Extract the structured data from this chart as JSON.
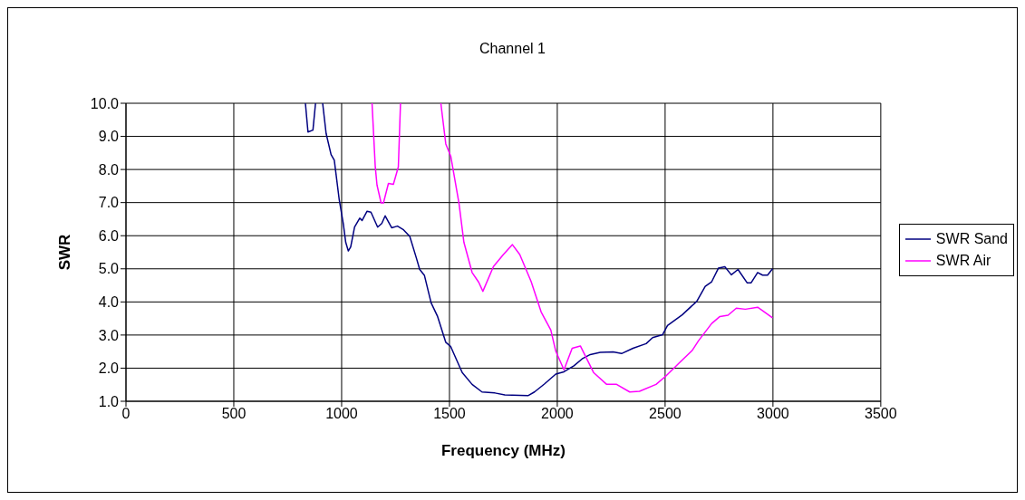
{
  "chart_data": {
    "type": "line",
    "title": "Channel 1",
    "xlabel": "Frequency (MHz)",
    "ylabel": "SWR",
    "xlim": [
      0,
      3500
    ],
    "xticks": [
      0,
      500,
      1000,
      1500,
      2000,
      2500,
      3000,
      3500
    ],
    "ylim": [
      1,
      10
    ],
    "yticks": [
      {
        "value": 1,
        "label": "1.0"
      },
      {
        "value": 2,
        "label": "2.0"
      },
      {
        "value": 3,
        "label": "3.0"
      },
      {
        "value": 4,
        "label": "4.0"
      },
      {
        "value": 5,
        "label": "5.0"
      },
      {
        "value": 6,
        "label": "6.0"
      },
      {
        "value": 7,
        "label": "7.0"
      },
      {
        "value": 8,
        "label": "8.0"
      },
      {
        "value": 9,
        "label": "9.0"
      },
      {
        "value": 10,
        "label": "10.0"
      }
    ],
    "grid": true,
    "legend": "right",
    "marker": "none",
    "line_style": "solid",
    "series": [
      {
        "name": "SWR Sand",
        "color": "#000080",
        "x": [
          832,
          844,
          867,
          879,
          895,
          912,
          928,
          951,
          966,
          989,
          1008,
          1019,
          1031,
          1042,
          1060,
          1084,
          1095,
          1118,
          1136,
          1167,
          1186,
          1202,
          1232,
          1259,
          1285,
          1316,
          1346,
          1362,
          1384,
          1415,
          1445,
          1483,
          1506,
          1559,
          1605,
          1651,
          1711,
          1757,
          1864,
          1894,
          1940,
          1993,
          2031,
          2077,
          2115,
          2153,
          2199,
          2259,
          2298,
          2351,
          2412,
          2442,
          2488,
          2511,
          2579,
          2647,
          2686,
          2716,
          2747,
          2777,
          2807,
          2838,
          2880,
          2899,
          2929,
          2952,
          2975,
          2998
        ],
        "values": [
          10,
          9.13,
          9.19,
          10,
          null,
          10,
          9.09,
          8.45,
          8.28,
          7.08,
          6.35,
          5.8,
          5.54,
          5.66,
          6.26,
          6.53,
          6.46,
          6.74,
          6.71,
          6.26,
          6.37,
          6.6,
          6.24,
          6.29,
          6.19,
          5.98,
          5.34,
          4.98,
          4.8,
          3.97,
          3.56,
          2.78,
          2.65,
          1.87,
          1.51,
          1.28,
          1.25,
          1.19,
          1.17,
          1.28,
          1.52,
          1.82,
          1.89,
          2.07,
          2.28,
          2.41,
          2.48,
          2.49,
          2.44,
          2.6,
          2.74,
          2.92,
          3.01,
          3.29,
          3.61,
          4.02,
          4.47,
          4.61,
          5.02,
          5.06,
          4.82,
          4.98,
          4.58,
          4.58,
          4.89,
          4.81,
          4.81,
          5.0
        ]
      },
      {
        "name": "SWR Air",
        "color": "#ff00ff",
        "x": [
          1141,
          1156,
          1164,
          1183,
          1194,
          1217,
          1240,
          1263,
          1273,
          1370,
          1460,
          1483,
          1506,
          1544,
          1567,
          1605,
          1636,
          1655,
          1704,
          1750,
          1792,
          1826,
          1879,
          1925,
          1970,
          1993,
          2031,
          2069,
          2107,
          2168,
          2229,
          2275,
          2336,
          2381,
          2458,
          2503,
          2564,
          2625,
          2655,
          2716,
          2754,
          2792,
          2830,
          2872,
          2929,
          2960,
          2998
        ],
        "values": [
          10,
          8.08,
          7.53,
          6.99,
          6.99,
          7.58,
          7.55,
          8.08,
          10,
          null,
          10,
          8.77,
          8.4,
          6.99,
          5.8,
          4.89,
          4.59,
          4.32,
          5.07,
          5.43,
          5.73,
          5.43,
          4.61,
          3.7,
          3.15,
          2.51,
          1.95,
          2.6,
          2.67,
          1.87,
          1.51,
          1.51,
          1.28,
          1.3,
          1.51,
          1.76,
          2.15,
          2.53,
          2.83,
          3.35,
          3.56,
          3.6,
          3.81,
          3.78,
          3.84,
          3.7,
          3.52
        ]
      }
    ]
  }
}
